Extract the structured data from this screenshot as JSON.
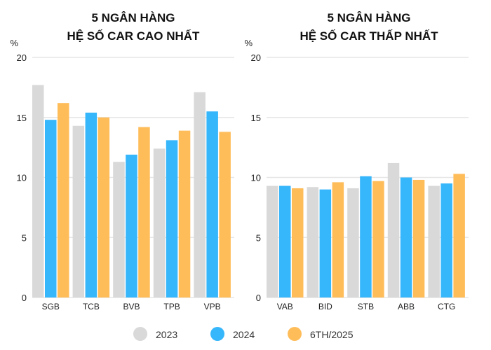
{
  "chart_data": [
    {
      "type": "bar",
      "title_line1": "5 NGÂN HÀNG",
      "title_line2": "HỆ SỐ CAR CAO NHẤT",
      "ylabel": "%",
      "ylim": [
        0,
        20
      ],
      "yticks": [
        "0",
        "5",
        "10",
        "15",
        "20"
      ],
      "categories": [
        "SGB",
        "TCB",
        "BVB",
        "TPB",
        "VPB"
      ],
      "series": [
        {
          "name": "2023",
          "values": [
            17.7,
            14.3,
            11.3,
            12.4,
            17.1
          ]
        },
        {
          "name": "2024",
          "values": [
            14.8,
            15.4,
            11.9,
            13.1,
            15.5
          ]
        },
        {
          "name": "6TH/2025",
          "values": [
            16.2,
            15.0,
            14.2,
            13.9,
            13.8
          ]
        }
      ]
    },
    {
      "type": "bar",
      "title_line1": "5 NGÂN HÀNG",
      "title_line2": "HỆ SỐ CAR THẤP NHẤT",
      "ylabel": "%",
      "ylim": [
        0,
        20
      ],
      "yticks": [
        "0",
        "5",
        "10",
        "15",
        "20"
      ],
      "categories": [
        "VAB",
        "BID",
        "STB",
        "ABB",
        "CTG"
      ],
      "series": [
        {
          "name": "2023",
          "values": [
            9.3,
            9.2,
            9.1,
            11.2,
            9.3
          ]
        },
        {
          "name": "2024",
          "values": [
            9.3,
            9.0,
            10.1,
            10.0,
            9.5
          ]
        },
        {
          "name": "6TH/2025",
          "values": [
            9.1,
            9.6,
            9.7,
            9.8,
            10.3
          ]
        }
      ]
    }
  ],
  "legend": [
    "2023",
    "2024",
    "6TH/2025"
  ],
  "colors": {
    "2023": "#d9d9d9",
    "2024": "#36b6fb",
    "6TH/2025": "#ffbd5a",
    "grid": "#e6e6e6"
  }
}
